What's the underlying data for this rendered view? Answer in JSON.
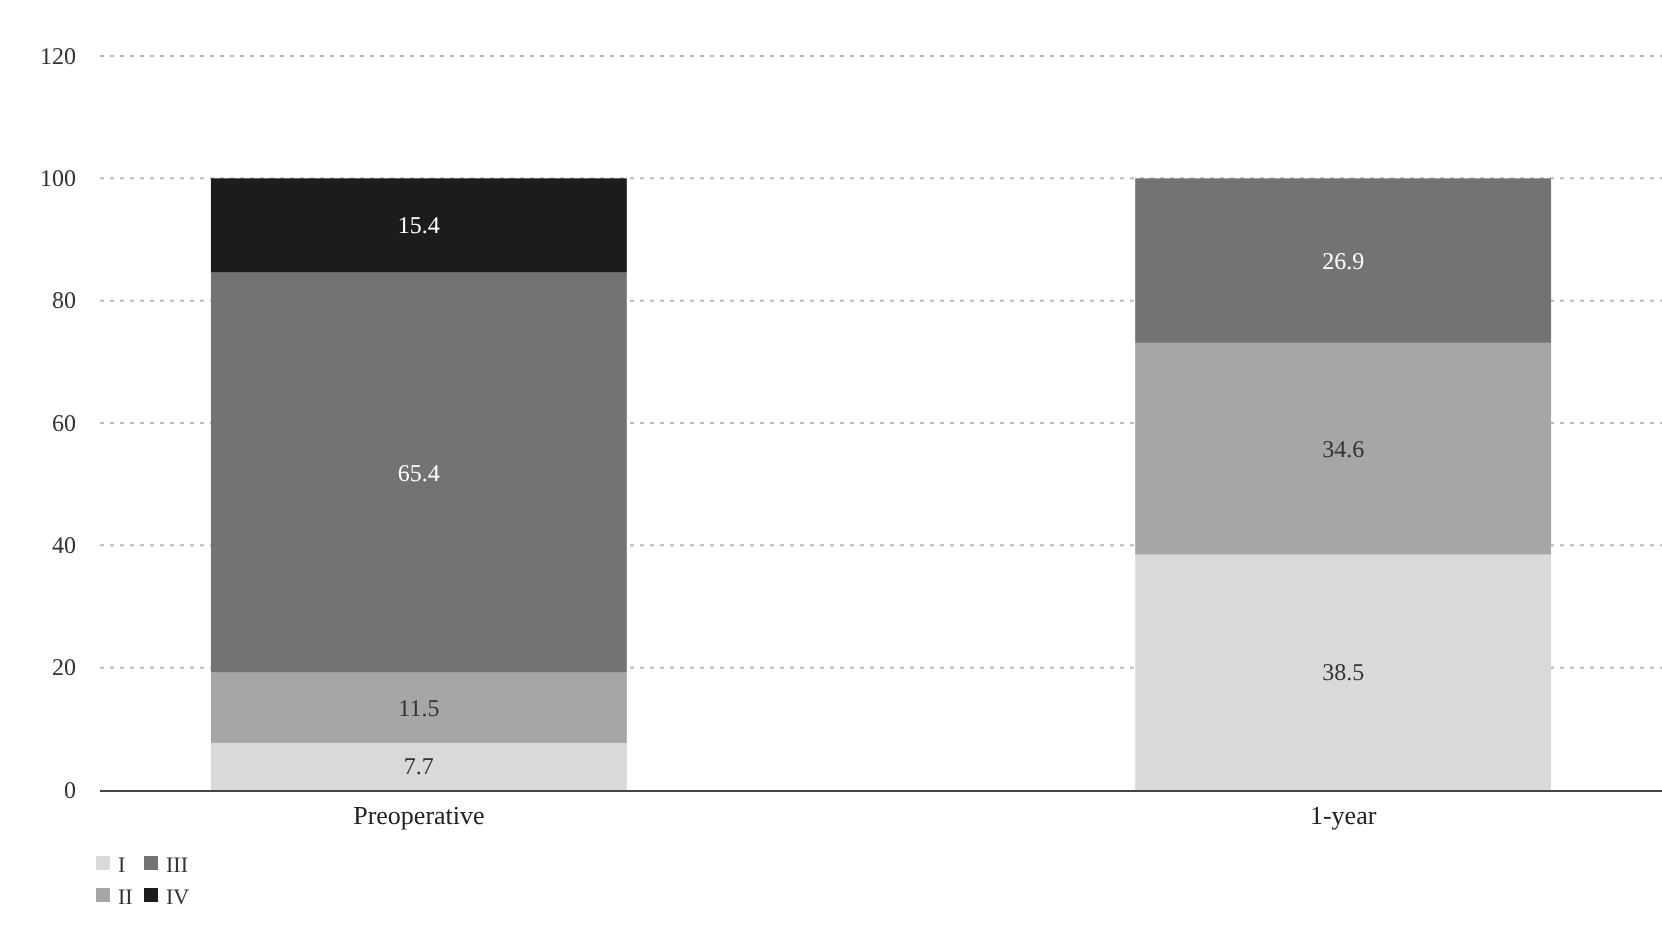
{
  "chart_data": {
    "type": "bar",
    "stacked": true,
    "categories": [
      "Preoperative",
      "1-year"
    ],
    "series": [
      {
        "name": "I",
        "color": "#d9d9d9",
        "values": [
          7.7,
          38.5
        ]
      },
      {
        "name": "II",
        "color": "#a6a6a6",
        "values": [
          11.5,
          34.6
        ]
      },
      {
        "name": "III",
        "color": "#737373",
        "values": [
          65.4,
          26.9
        ]
      },
      {
        "name": "IV",
        "color": "#1c1c1c",
        "values": [
          15.4,
          null
        ]
      }
    ],
    "ylim": [
      0,
      120
    ],
    "yticks": [
      0,
      20,
      40,
      60,
      80,
      100,
      120
    ],
    "grid": "y",
    "legend": "bottom left",
    "data_labels": true
  }
}
